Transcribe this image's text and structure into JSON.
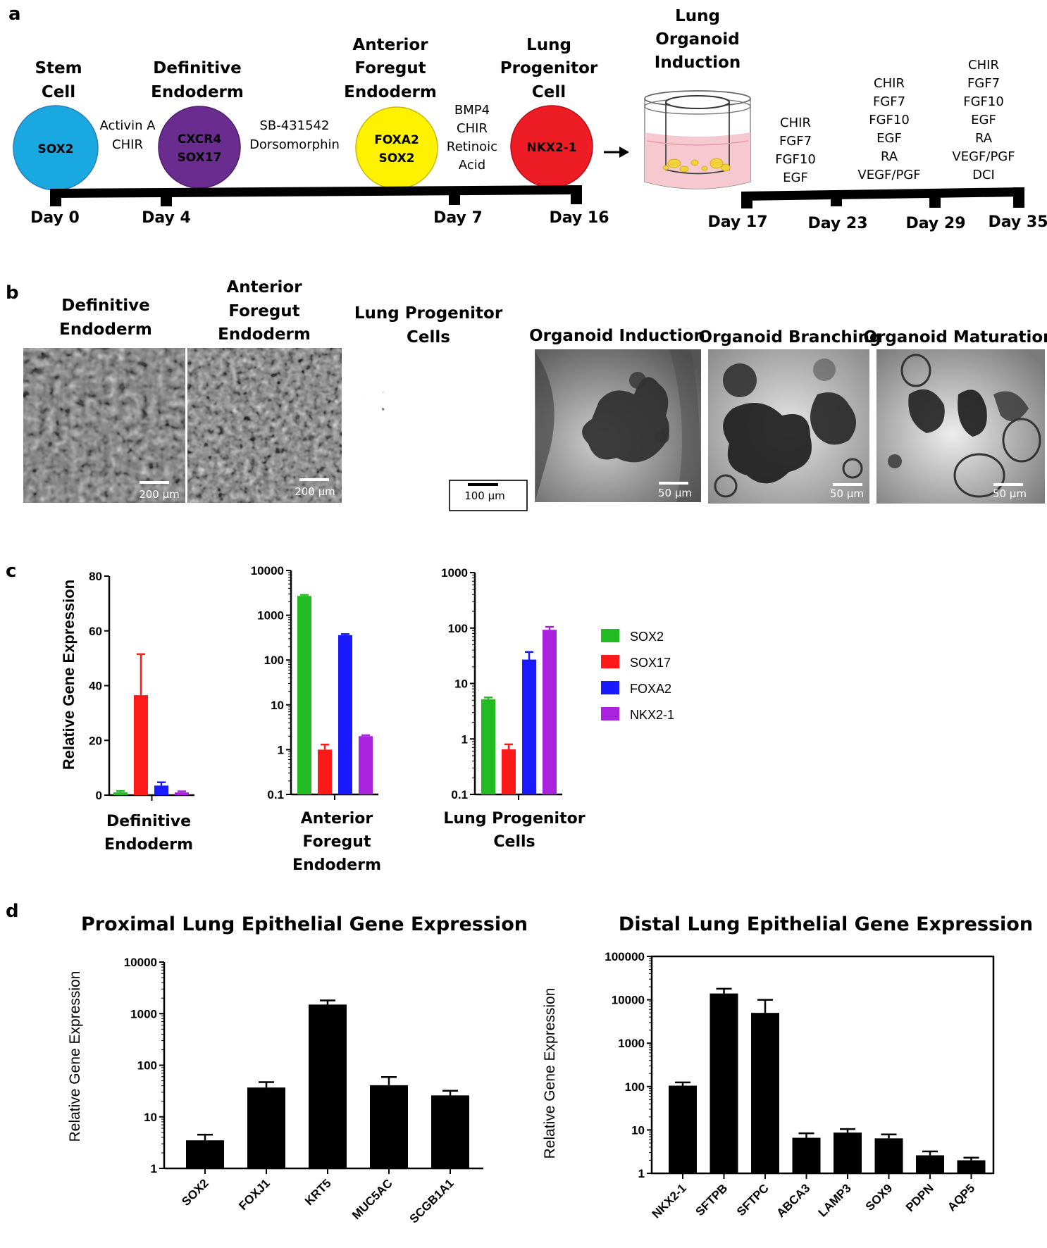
{
  "panel_a": {
    "letter": "a",
    "stages": [
      {
        "title_lines": [
          "Stem",
          "Cell"
        ],
        "markers": [
          "SOX2"
        ],
        "color": "#1aa8e0"
      },
      {
        "title_lines": [
          "Definitive",
          "Endoderm"
        ],
        "markers": [
          "CXCR4",
          "SOX17"
        ],
        "color": "#6a2d8f"
      },
      {
        "title_lines": [
          "Anterior",
          "Foregut",
          "Endoderm"
        ],
        "markers": [
          "FOXA2",
          "SOX2"
        ],
        "color": "#fff200"
      },
      {
        "title_lines": [
          "Lung",
          "Progenitor",
          "Cell"
        ],
        "markers": [
          "NKX2-1"
        ],
        "color": "#ee1c24"
      }
    ],
    "factors": [
      [
        "Activin A",
        "CHIR"
      ],
      [
        "SB-431542",
        "Dorsomorphin"
      ],
      [
        "BMP4",
        "CHIR",
        "Retinoic",
        "Acid"
      ]
    ],
    "days_left": [
      "Day 0",
      "Day 4",
      "Day 7",
      "Day 16"
    ],
    "organoid_title": [
      "Lung",
      "Organoid",
      "Induction"
    ],
    "organoid_factors": [
      [
        "CHIR",
        "FGF7",
        "FGF10",
        "EGF"
      ],
      [
        "CHIR",
        "FGF7",
        "FGF10",
        "EGF",
        "RA",
        "VEGF/PGF"
      ],
      [
        "CHIR",
        "FGF7",
        "FGF10",
        "EGF",
        "RA",
        "VEGF/PGF",
        "DCI"
      ]
    ],
    "days_right": [
      "Day 17",
      "Day 23",
      "Day 29",
      "Day 35"
    ]
  },
  "panel_b": {
    "letter": "b",
    "images": [
      {
        "title_lines": [
          "Definitive",
          "Endoderm"
        ],
        "scale": "200 µm"
      },
      {
        "title_lines": [
          "Anterior",
          "Foregut",
          "Endoderm"
        ],
        "scale": "200 µm"
      },
      {
        "title_lines": [
          "Lung Progenitor",
          "Cells"
        ],
        "scale": "100 µm"
      },
      {
        "title_lines": [
          "Organoid Induction"
        ],
        "scale": "50 µm"
      },
      {
        "title_lines": [
          "Organoid Branching"
        ],
        "scale": "50 µm"
      },
      {
        "title_lines": [
          "Organoid Maturation"
        ],
        "scale": "50 µm"
      }
    ]
  },
  "panel_c": {
    "letter": "c",
    "ylabel": "Relative Gene Expression",
    "legend": [
      {
        "name": "SOX2",
        "color": "#22bb22"
      },
      {
        "name": "SOX17",
        "color": "#ff1a1a"
      },
      {
        "name": "FOXA2",
        "color": "#1a1aff"
      },
      {
        "name": "NKX2-1",
        "color": "#aa22dd"
      }
    ]
  },
  "panel_d": {
    "letter": "d",
    "ylabel": "Relative Gene Expression"
  },
  "chart_data": [
    {
      "type": "bar",
      "group_label": [
        "Definitive",
        "Endoderm"
      ],
      "scale": "linear",
      "ylim": [
        0,
        80
      ],
      "yticks": [
        "0",
        "20",
        "40",
        "60",
        "80"
      ],
      "categories": [
        "SOX2",
        "SOX17",
        "FOXA2",
        "NKX2-1"
      ],
      "values": [
        1,
        36.5,
        3.5,
        1
      ],
      "errors": [
        0.5,
        15,
        1.2,
        0.4
      ]
    },
    {
      "type": "bar",
      "group_label": [
        "Anterior",
        "Foregut",
        "Endoderm"
      ],
      "scale": "log",
      "ylim": [
        0.1,
        10000
      ],
      "yticks": [
        "0.1",
        "1",
        "10",
        "100",
        "1000",
        "10000"
      ],
      "categories": [
        "SOX2",
        "SOX17",
        "FOXA2",
        "NKX2-1"
      ],
      "values": [
        2700,
        1.0,
        360,
        2.0
      ],
      "errors": [
        150,
        0.3,
        20,
        0.1
      ]
    },
    {
      "type": "bar",
      "group_label": [
        "Lung Progenitor",
        "Cells"
      ],
      "scale": "log",
      "ylim": [
        0.1,
        1000
      ],
      "yticks": [
        "0.1",
        "1",
        "10",
        "100",
        "1000"
      ],
      "categories": [
        "SOX2",
        "SOX17",
        "FOXA2",
        "NKX2-1"
      ],
      "values": [
        5.2,
        0.65,
        27,
        93
      ],
      "errors": [
        0.4,
        0.15,
        10,
        12
      ]
    },
    {
      "type": "bar",
      "title": "Proximal Lung Epithelial Gene Expression",
      "scale": "log",
      "ylim": [
        1,
        10000
      ],
      "yticks": [
        "1",
        "10",
        "100",
        "1000",
        "10000"
      ],
      "categories": [
        "SOX2",
        "FOXJ1",
        "KRT5",
        "MUC5AC",
        "SCGB1A1"
      ],
      "values": [
        3.5,
        37,
        1500,
        41,
        26
      ],
      "errors": [
        1.0,
        10,
        300,
        18,
        6
      ]
    },
    {
      "type": "bar",
      "title": "Distal Lung Epithelial Gene Expression",
      "scale": "log",
      "ylim": [
        1,
        100000
      ],
      "yticks": [
        "1",
        "10",
        "100",
        "1000",
        "10000",
        "100000"
      ],
      "categories": [
        "NKX2-1",
        "SFTPB",
        "SFTPC",
        "ABCA3",
        "LAMP3",
        "SOX9",
        "PDPN",
        "AQP5"
      ],
      "values": [
        105,
        14000,
        5000,
        6.6,
        8.7,
        6.4,
        2.6,
        2.0
      ],
      "errors": [
        20,
        4000,
        5000,
        1.8,
        1.8,
        1.5,
        0.6,
        0.3
      ]
    }
  ]
}
